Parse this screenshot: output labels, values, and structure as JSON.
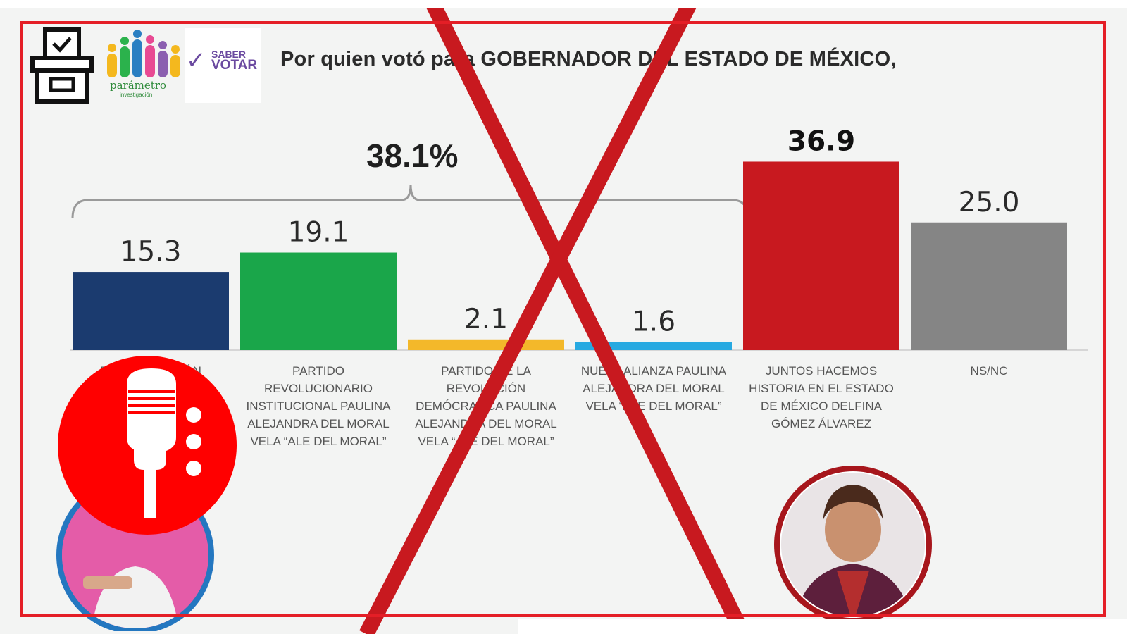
{
  "header": {
    "title": "Por quien votó para GOBERNADOR DEL ESTADO DE MÉXICO,"
  },
  "logos": {
    "ballot_icon": "ballot-box-icon",
    "parametro_text": "parámetro",
    "parametro_sub": "investigación",
    "saber_votar_line1": "SABER",
    "saber_votar_line2": "VOTAR"
  },
  "group_total": "38.1%",
  "chart_data": {
    "type": "bar",
    "title": "Por quien votó para GOBERNADOR DEL ESTADO DE MÉXICO,",
    "categories": [
      "PARTIDO ACCIÓN NACIONAL",
      "PARTIDO REVOLUCIONARIO INSTITUCIONAL PAULINA ALEJANDRA DEL MORAL VELA “ALE DEL MORAL”",
      "PARTIDO DE LA REVOLUCIÓN DEMÓCRATICA PAULINA ALEJANDRA DEL MORAL VELA “ALE DEL MORAL”",
      "NUEVA ALIANZA PAULINA ALEJANDRA DEL MORAL VELA “ALE DEL MORAL”",
      "JUNTOS HACEMOS HISTORIA EN EL ESTADO DE MÉXICO DELFINA GÓMEZ ÁLVAREZ",
      "NS/NC"
    ],
    "values": [
      15.3,
      19.1,
      2.1,
      1.6,
      36.9,
      25.0
    ],
    "value_labels": [
      "15.3",
      "19.1",
      "2.1",
      "1.6",
      "36.9",
      "25.0"
    ],
    "colors": [
      "#1b3b6f",
      "#1aa64a",
      "#f3b82a",
      "#27a9e1",
      "#c8191f",
      "#858585"
    ],
    "ylim": [
      0,
      40
    ],
    "grid": false,
    "legend": "none",
    "group_bracket": {
      "label": "38.1%",
      "from_index": 0,
      "to_index": 3
    }
  },
  "colors": {
    "frame": "#e41e26",
    "background": "#f3f4f3",
    "cross": "#c8191f",
    "mic_badge": "#ff0000"
  },
  "overlays": {
    "cross_mark": "x-mark-icon",
    "mic_badge": "microphone-icon"
  }
}
